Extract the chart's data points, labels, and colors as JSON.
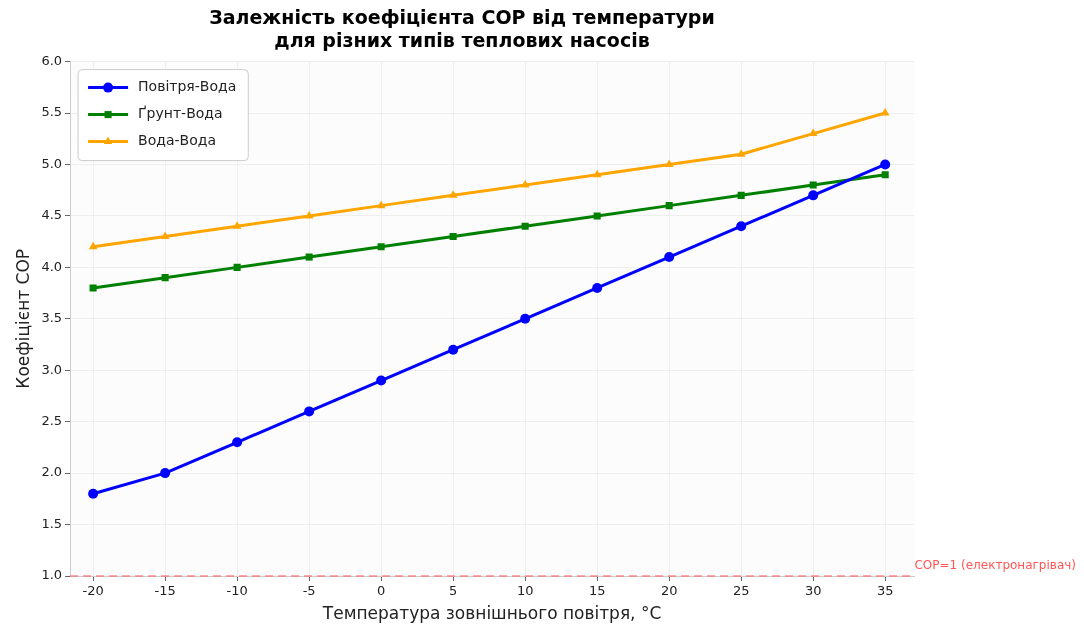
{
  "chart_data": {
    "type": "line",
    "title": "Залежність коефіцієнта COP від температури\nдля різних типів теплових насосів",
    "xlabel": "Температура зовнішнього повітря, °C",
    "ylabel": "Коефіцієнт COP",
    "x": [
      -20,
      -15,
      -10,
      -5,
      0,
      5,
      10,
      15,
      20,
      25,
      30,
      35
    ],
    "series": [
      {
        "name": "Повітря-Вода",
        "color": "#0000ff",
        "marker": "circle",
        "values": [
          1.8,
          2.0,
          2.3,
          2.6,
          2.9,
          3.2,
          3.5,
          3.8,
          4.1,
          4.4,
          4.7,
          5.0
        ]
      },
      {
        "name": "Ґрунт-Вода",
        "color": "#008000",
        "marker": "square",
        "values": [
          3.8,
          3.9,
          4.0,
          4.1,
          4.2,
          4.3,
          4.4,
          4.5,
          4.6,
          4.7,
          4.8,
          4.9
        ]
      },
      {
        "name": "Вода-Вода",
        "color": "#ffa500",
        "marker": "triangle",
        "values": [
          4.2,
          4.3,
          4.4,
          4.5,
          4.6,
          4.7,
          4.8,
          4.9,
          5.0,
          5.1,
          5.3,
          5.5
        ]
      }
    ],
    "xlim": [
      -21.6,
      37
    ],
    "xticks": [
      -20,
      -15,
      -10,
      -5,
      0,
      5,
      10,
      15,
      20,
      25,
      30,
      35
    ],
    "ylim": [
      1,
      6
    ],
    "yticks": [
      {
        "value": 1,
        "label": "1.0"
      },
      {
        "value": 1.5,
        "label": "1.5"
      },
      {
        "value": 2,
        "label": "2.0"
      },
      {
        "value": 2.5,
        "label": "2.5"
      },
      {
        "value": 3,
        "label": "3.0"
      },
      {
        "value": 3.5,
        "label": "3.5"
      },
      {
        "value": 4,
        "label": "4.0"
      },
      {
        "value": 4.5,
        "label": "4.5"
      },
      {
        "value": 5,
        "label": "5.0"
      },
      {
        "value": 5.5,
        "label": "5.5"
      },
      {
        "value": 6,
        "label": "6.0"
      }
    ],
    "ref_lines": [
      {
        "axis": "y",
        "value": 1,
        "label": "COP=1 (електронагрівач)",
        "color": "#ff5555",
        "line_style": "dashed"
      }
    ],
    "grid": true,
    "legend": "top left",
    "line_style": "solid"
  }
}
